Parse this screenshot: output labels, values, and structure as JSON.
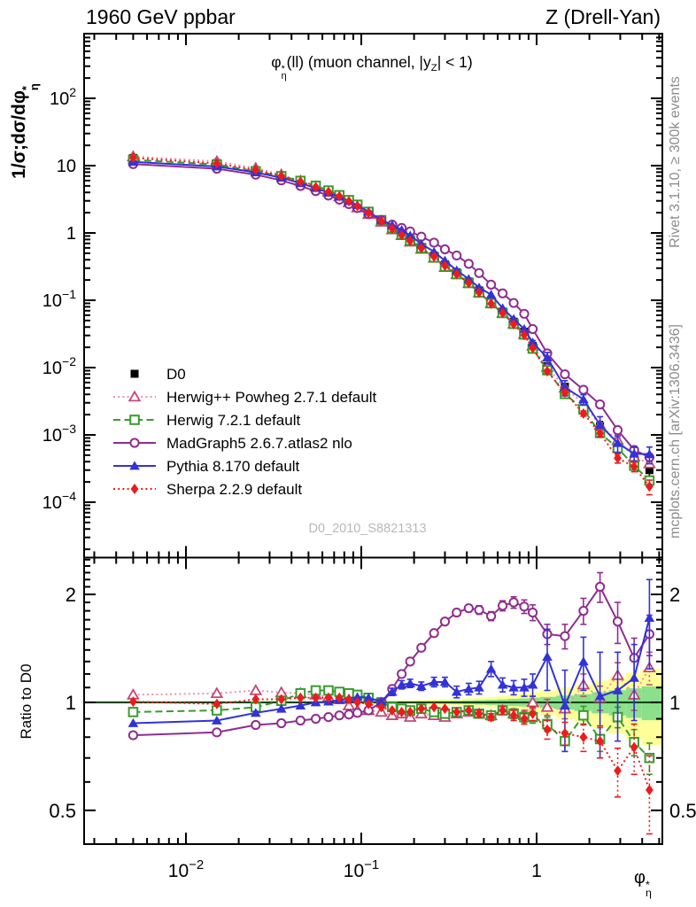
{
  "header": {
    "left": "1960 GeV ppbar",
    "right": "Z (Drell-Yan)"
  },
  "panel_title": {
    "phi": "φ",
    "sup": "*",
    "sub": "η",
    "rest1": "(ll) (muon channel, |y",
    "sub2": "Z",
    "rest2": "| < 1)"
  },
  "axes": {
    "y_label": {
      "pre": "1/σ;dσ/dφ",
      "sup": "*",
      "sub": "η"
    },
    "x_label": {
      "phi": "φ",
      "sup": "*",
      "sub": "η"
    },
    "ratio_label": "Ratio to D0",
    "x_ticks": [
      {
        "v": 0.01,
        "base": "10",
        "exp": "-2"
      },
      {
        "v": 0.1,
        "base": "10",
        "exp": "-1"
      },
      {
        "v": 1,
        "base": "1",
        "exp": ""
      }
    ],
    "y_ticks_main": [
      {
        "v": 100,
        "base": "10",
        "exp": "2"
      },
      {
        "v": 10,
        "base": "10",
        "exp": ""
      },
      {
        "v": 1,
        "base": "1",
        "exp": ""
      },
      {
        "v": 0.1,
        "base": "10",
        "exp": "-1"
      },
      {
        "v": 0.01,
        "base": "10",
        "exp": "-2"
      },
      {
        "v": 0.001,
        "base": "10",
        "exp": "-3"
      },
      {
        "v": 0.0001,
        "base": "10",
        "exp": "-4"
      }
    ],
    "y_ticks_ratio": [
      {
        "v": 2,
        "base": "2"
      },
      {
        "v": 1,
        "base": "1"
      },
      {
        "v": 0.5,
        "base": "0.5"
      }
    ]
  },
  "side_notes": {
    "top": "Rivet 3.1.10, ≥ 300k events",
    "bottom": "mcplots.cern.ch [arXiv:1306.3436]"
  },
  "watermark": "D0_2010_S8821313",
  "chart_data": {
    "type": "line",
    "x_log": true,
    "y_log": true,
    "xlim": [
      0.0028,
      5.25
    ],
    "ylim_main": [
      1.5e-05,
      900
    ],
    "ylim_ratio": [
      0.4,
      2.54
    ],
    "x": [
      0.005,
      0.015,
      0.025,
      0.035,
      0.045,
      0.055,
      0.065,
      0.075,
      0.085,
      0.095,
      0.11,
      0.13,
      0.15,
      0.17,
      0.19,
      0.22,
      0.26,
      0.3,
      0.35,
      0.41,
      0.47,
      0.55,
      0.64,
      0.74,
      0.85,
      0.95,
      1.15,
      1.45,
      1.85,
      2.3,
      2.9,
      3.6,
      4.4
    ],
    "reference": {
      "name": "D0",
      "color": "#000000",
      "marker": "square-filled",
      "line": "none",
      "values": [
        13.0,
        10.9,
        8.5,
        6.9,
        5.6,
        4.65,
        3.95,
        3.4,
        2.9,
        2.5,
        2.0,
        1.55,
        1.22,
        0.99,
        0.81,
        0.62,
        0.46,
        0.34,
        0.26,
        0.19,
        0.14,
        0.098,
        0.068,
        0.048,
        0.034,
        0.021,
        0.0105,
        0.0052,
        0.0026,
        0.00135,
        0.0007,
        0.00045,
        0.0003
      ],
      "err_frac": [
        0,
        0,
        0,
        0,
        0,
        0,
        0,
        0,
        0,
        0,
        0,
        0,
        0,
        0,
        0,
        0,
        0,
        0,
        0,
        0,
        0,
        0,
        0,
        0,
        0.05,
        0.06,
        0.08,
        0.1,
        0.13,
        0.17,
        0.22,
        0.28,
        0.35
      ]
    },
    "series": [
      {
        "name": "Herwig++ Powheg 2.7.1 default",
        "color": "#C24972",
        "lineColor": "#EB93AC",
        "marker": "triangle-open",
        "line": "dotted",
        "ratio": [
          1.05,
          1.06,
          1.08,
          1.065,
          1.06,
          1.05,
          1.035,
          1.02,
          0.98,
          0.95,
          0.95,
          0.94,
          0.92,
          0.93,
          0.91,
          0.93,
          0.92,
          0.91,
          0.93,
          0.94,
          0.93,
          0.92,
          0.95,
          0.93,
          0.92,
          1.0,
          0.97,
          0.96,
          1.12,
          1.03,
          1.19,
          1.05,
          1.25
        ],
        "err": [
          0,
          0,
          0,
          0,
          0,
          0,
          0,
          0,
          0,
          0,
          0,
          0,
          0,
          0,
          0,
          0,
          0,
          0,
          0,
          0,
          0.02,
          0.02,
          0.02,
          0.03,
          0.03,
          0.04,
          0.05,
          0.06,
          0.08,
          0.08,
          0.1,
          0.1,
          0.13
        ]
      },
      {
        "name": "Herwig 7.2.1 default",
        "color": "#399B2E",
        "marker": "square-open",
        "line": "dashed",
        "ratio": [
          0.94,
          0.95,
          0.97,
          1.01,
          1.06,
          1.08,
          1.08,
          1.07,
          1.06,
          1.05,
          1.03,
          1.0,
          0.97,
          0.96,
          0.95,
          0.96,
          0.94,
          0.93,
          0.94,
          0.95,
          0.93,
          0.92,
          0.95,
          0.93,
          0.91,
          0.91,
          0.87,
          0.78,
          0.92,
          0.79,
          0.91,
          0.775,
          0.7
        ],
        "err": [
          0,
          0,
          0,
          0,
          0,
          0,
          0,
          0,
          0,
          0,
          0,
          0,
          0,
          0,
          0,
          0,
          0,
          0,
          0,
          0,
          0.015,
          0.02,
          0.02,
          0.025,
          0.03,
          0.035,
          0.04,
          0.05,
          0.055,
          0.06,
          0.06,
          0.065,
          0.07
        ]
      },
      {
        "name": "MadGraph5 2.6.7.atlas2 nlo",
        "color": "#8F2E8F",
        "marker": "circle-open",
        "line": "solid",
        "ratio": [
          0.81,
          0.825,
          0.865,
          0.875,
          0.89,
          0.9,
          0.91,
          0.92,
          0.925,
          0.935,
          0.95,
          1.0,
          1.09,
          1.2,
          1.3,
          1.42,
          1.56,
          1.68,
          1.78,
          1.83,
          1.81,
          1.74,
          1.86,
          1.9,
          1.85,
          1.78,
          1.55,
          1.53,
          1.8,
          2.1,
          1.68,
          1.33,
          1.55
        ],
        "err": [
          0,
          0,
          0,
          0,
          0,
          0,
          0,
          0,
          0,
          0,
          0,
          0,
          0,
          0,
          0,
          0,
          0,
          0,
          0.04,
          0.04,
          0.05,
          0.05,
          0.06,
          0.07,
          0.08,
          0.09,
          0.1,
          0.12,
          0.15,
          0.2,
          0.22,
          0.18,
          0.2
        ]
      },
      {
        "name": "Pythia 8.170 default",
        "color": "#3232D8",
        "marker": "triangle-filled",
        "line": "solid",
        "ratio": [
          0.875,
          0.89,
          0.935,
          0.96,
          0.98,
          1.0,
          1.005,
          1.015,
          1.025,
          1.035,
          1.03,
          1.005,
          1.07,
          1.12,
          1.13,
          1.11,
          1.14,
          1.14,
          1.07,
          1.09,
          1.1,
          1.24,
          1.12,
          1.1,
          1.1,
          1.12,
          1.34,
          0.98,
          1.3,
          1.04,
          1.08,
          1.17,
          1.72
        ],
        "err": [
          0,
          0,
          0,
          0,
          0,
          0,
          0,
          0,
          0,
          0,
          0,
          0,
          0.025,
          0.03,
          0.03,
          0.03,
          0.035,
          0.035,
          0.04,
          0.04,
          0.045,
          0.06,
          0.05,
          0.05,
          0.06,
          0.08,
          0.26,
          0.25,
          0.22,
          0.34,
          0.3,
          0.28,
          0.48
        ]
      },
      {
        "name": "Sherpa 2.2.9 default",
        "color": "#ED1C1C",
        "marker": "diamond-filled",
        "line": "dotted",
        "ratio": [
          1.005,
          0.99,
          1.02,
          1.02,
          1.03,
          1.03,
          1.03,
          1.03,
          1.02,
          1.0,
          0.99,
          0.97,
          0.95,
          0.94,
          0.94,
          0.96,
          0.97,
          0.96,
          0.94,
          0.95,
          0.93,
          0.91,
          0.95,
          0.92,
          0.9,
          0.93,
          0.84,
          0.82,
          0.8,
          0.78,
          0.645,
          0.75,
          0.57
        ],
        "err": [
          0,
          0,
          0,
          0,
          0,
          0,
          0,
          0,
          0,
          0,
          0,
          0,
          0,
          0,
          0,
          0,
          0,
          0,
          0,
          0,
          0.02,
          0.02,
          0.025,
          0.03,
          0.03,
          0.04,
          0.05,
          0.06,
          0.07,
          0.08,
          0.1,
          0.12,
          0.14
        ]
      }
    ],
    "band": {
      "green_color": "#8CE08C",
      "yellow_color": "#FFFF99",
      "green_frac": [
        0.003,
        0.003,
        0.003,
        0.003,
        0.003,
        0.003,
        0.003,
        0.003,
        0.004,
        0.004,
        0.004,
        0.005,
        0.005,
        0.005,
        0.006,
        0.007,
        0.008,
        0.009,
        0.01,
        0.012,
        0.014,
        0.016,
        0.019,
        0.023,
        0.026,
        0.031,
        0.036,
        0.045,
        0.054,
        0.068,
        0.081,
        0.095,
        0.108
      ],
      "yellow_frac": [
        0.006,
        0.006,
        0.006,
        0.006,
        0.006,
        0.007,
        0.007,
        0.007,
        0.008,
        0.008,
        0.009,
        0.01,
        0.011,
        0.012,
        0.013,
        0.015,
        0.017,
        0.02,
        0.023,
        0.027,
        0.031,
        0.036,
        0.042,
        0.05,
        0.058,
        0.068,
        0.08,
        0.1,
        0.12,
        0.15,
        0.18,
        0.21,
        0.24
      ]
    }
  }
}
